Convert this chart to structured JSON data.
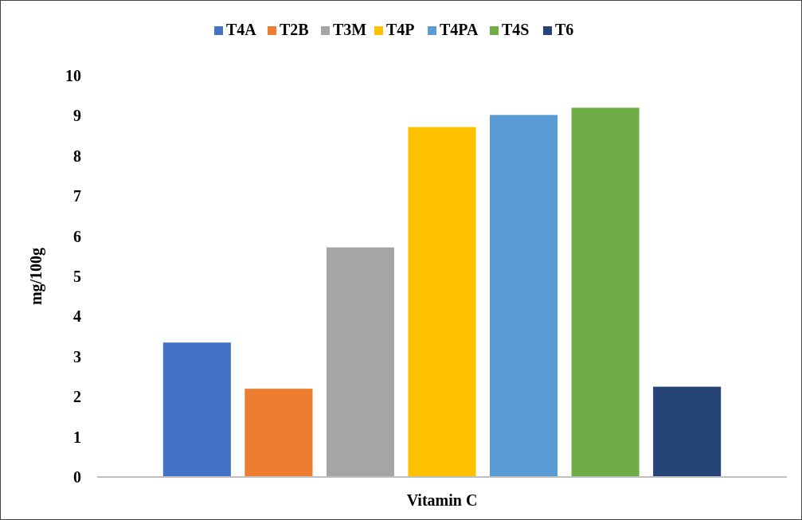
{
  "chart_data": {
    "type": "bar",
    "ylabel": "mg/100g",
    "categories": [
      "Vitamin C"
    ],
    "series": [
      {
        "name": "T4A",
        "color": "#4472c4",
        "values": [
          3.35
        ]
      },
      {
        "name": "T2B",
        "color": "#ed7d31",
        "values": [
          2.2
        ]
      },
      {
        "name": "T3M",
        "color": "#a5a5a5",
        "values": [
          5.72
        ]
      },
      {
        "name": "T4P",
        "color": "#ffc000",
        "values": [
          8.72
        ]
      },
      {
        "name": "T4PA",
        "color": "#5b9bd5",
        "values": [
          9.02
        ]
      },
      {
        "name": "T4S",
        "color": "#70ad47",
        "values": [
          9.2
        ]
      },
      {
        "name": "T6",
        "color": "#264478",
        "values": [
          2.25
        ]
      }
    ],
    "ylim": [
      0,
      10
    ],
    "yticks": [
      0,
      1,
      2,
      3,
      4,
      5,
      6,
      7,
      8,
      9,
      10
    ],
    "grid": false,
    "legend": "top"
  }
}
